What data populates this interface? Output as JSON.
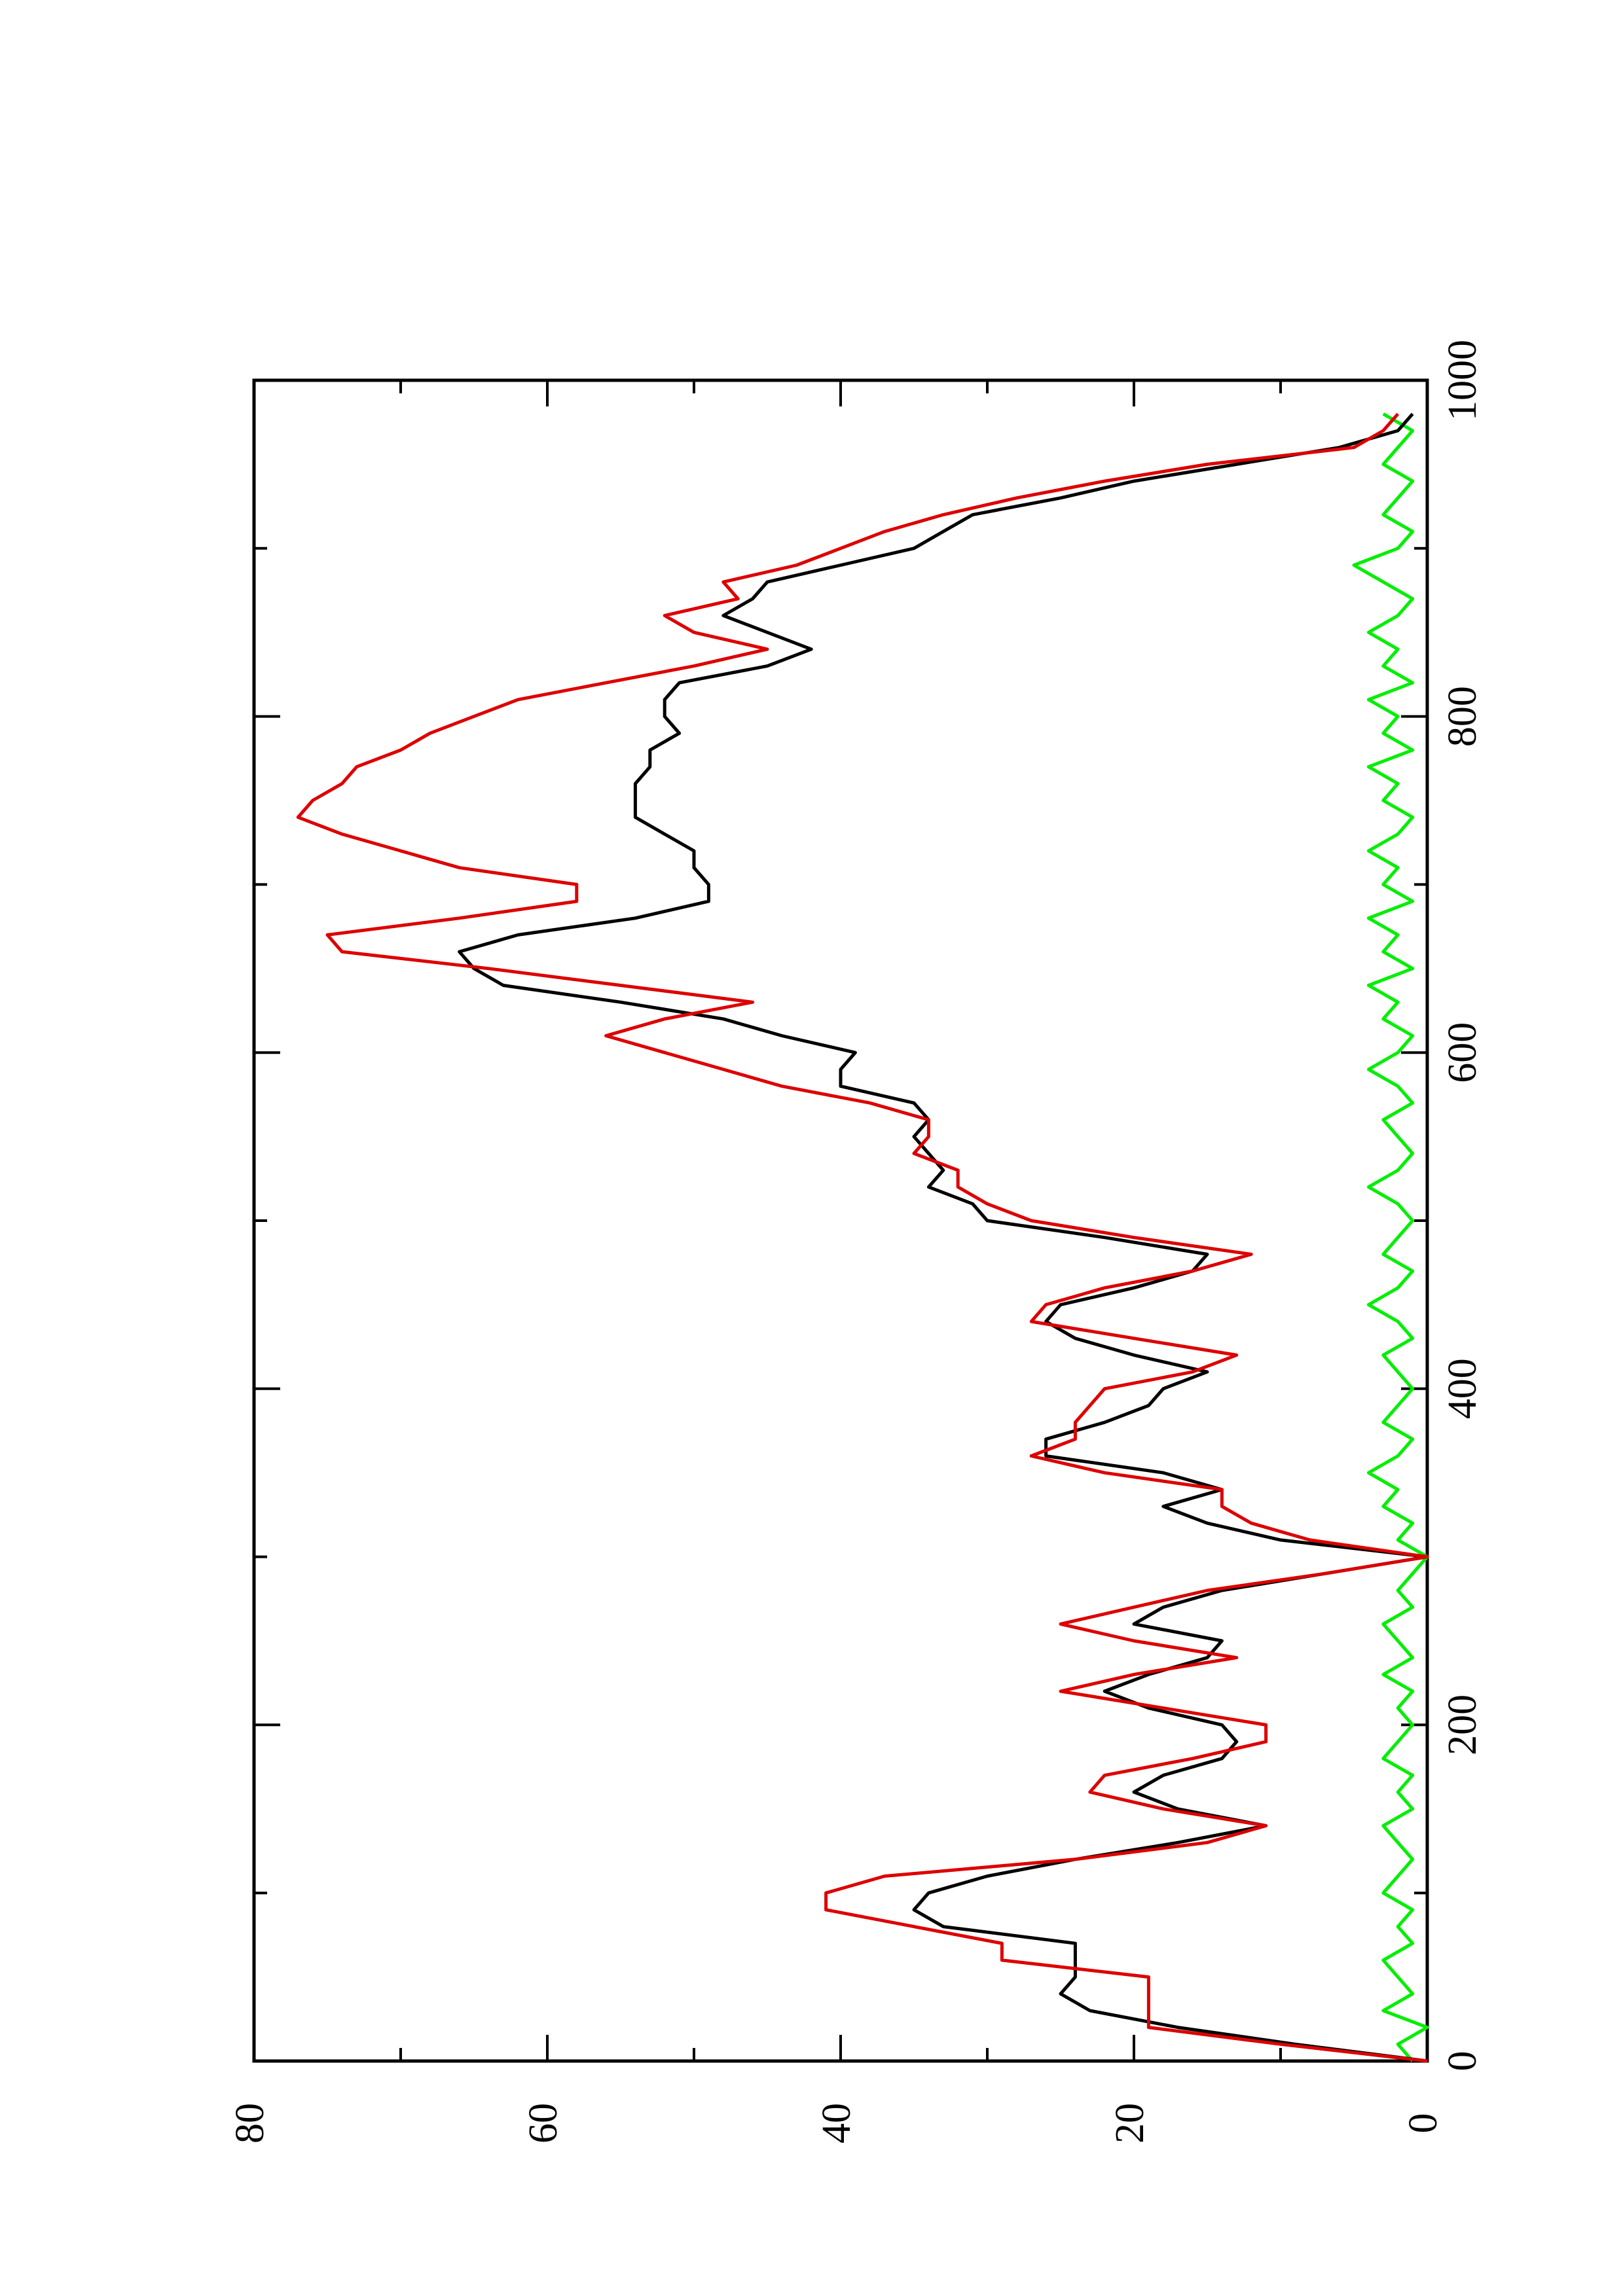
{
  "chart_data": {
    "type": "line",
    "x": [
      0,
      10,
      20,
      30,
      40,
      50,
      60,
      70,
      80,
      90,
      100,
      110,
      120,
      130,
      140,
      150,
      160,
      170,
      180,
      190,
      200,
      210,
      220,
      230,
      240,
      250,
      260,
      270,
      280,
      290,
      300,
      310,
      320,
      330,
      340,
      350,
      360,
      370,
      380,
      390,
      400,
      410,
      420,
      430,
      440,
      450,
      460,
      470,
      480,
      490,
      500,
      510,
      520,
      530,
      540,
      550,
      560,
      570,
      580,
      590,
      600,
      610,
      620,
      630,
      640,
      650,
      660,
      670,
      680,
      690,
      700,
      710,
      720,
      730,
      740,
      750,
      760,
      770,
      780,
      790,
      800,
      810,
      820,
      830,
      840,
      850,
      860,
      870,
      880,
      890,
      900,
      910,
      920,
      930,
      940,
      950,
      960,
      970,
      980
    ],
    "series": [
      {
        "color": "#00ee00",
        "values": [
          1,
          2,
          0,
          3,
          1,
          2,
          3,
          1,
          2,
          1,
          3,
          2,
          1,
          2,
          3,
          1,
          2,
          1,
          3,
          2,
          1,
          2,
          1,
          3,
          1,
          2,
          3,
          1,
          2,
          1,
          0,
          2,
          1,
          3,
          2,
          4,
          2,
          1,
          3,
          2,
          1,
          2,
          3,
          1,
          2,
          4,
          2,
          1,
          3,
          2,
          1,
          2,
          4,
          2,
          1,
          2,
          3,
          1,
          2,
          4,
          2,
          1,
          3,
          2,
          4,
          1,
          3,
          2,
          4,
          1,
          3,
          2,
          4,
          2,
          1,
          3,
          2,
          4,
          1,
          3,
          2,
          4,
          1,
          3,
          2,
          4,
          2,
          1,
          3,
          5,
          2,
          1,
          3,
          2,
          1,
          3,
          2,
          1,
          3
        ]
      },
      {
        "color": "#000000",
        "values": [
          0,
          9,
          17,
          23,
          25,
          24,
          24,
          24,
          33,
          35,
          34,
          30,
          24,
          17,
          11,
          17,
          20,
          18,
          14,
          13,
          14,
          19,
          22,
          19,
          15,
          14,
          20,
          18,
          14,
          7,
          0,
          10,
          15,
          18,
          14,
          18,
          26,
          26,
          22,
          19,
          18,
          15,
          20,
          24,
          26,
          25,
          20,
          16,
          15,
          22,
          30,
          31,
          34,
          33,
          34,
          35,
          34,
          35,
          40,
          40,
          39,
          44,
          48,
          55,
          63,
          65,
          66,
          62,
          54,
          49,
          49,
          50,
          50,
          52,
          54,
          54,
          54,
          53,
          53,
          51,
          52,
          52,
          51,
          45,
          42,
          45,
          48,
          46,
          45,
          40,
          35,
          33,
          31,
          25,
          20,
          13,
          6,
          2,
          1
        ]
      },
      {
        "color": "#dd0000",
        "values": [
          0,
          10,
          19,
          19,
          19,
          19,
          29,
          29,
          35,
          41,
          41,
          37,
          24,
          15,
          11,
          18,
          23,
          22,
          16,
          11,
          11,
          18,
          25,
          20,
          13,
          20,
          25,
          20,
          15,
          7,
          0,
          8,
          12,
          14,
          14,
          22,
          27,
          24,
          24,
          23,
          22,
          16,
          13,
          20,
          27,
          26,
          22,
          16,
          12,
          20,
          27,
          30,
          32,
          32,
          35,
          34,
          34,
          38,
          44,
          48,
          52,
          56,
          52,
          46,
          55,
          64,
          74,
          75,
          66,
          58,
          58,
          66,
          70,
          74,
          77,
          76,
          74,
          73,
          70,
          68,
          65,
          62,
          56,
          50,
          45,
          50,
          52,
          47,
          48,
          43,
          40,
          37,
          33,
          28,
          22,
          15,
          5,
          3,
          2
        ]
      }
    ],
    "xlim": [
      0,
      1000
    ],
    "xticks": [
      0,
      200,
      400,
      600,
      800,
      1000
    ],
    "xminor": [
      100,
      300,
      500,
      700,
      900
    ],
    "ylim": [
      0,
      80
    ],
    "yticks": [
      0,
      20,
      40,
      60,
      80
    ],
    "yminor": [
      10,
      30,
      50,
      70
    ]
  }
}
